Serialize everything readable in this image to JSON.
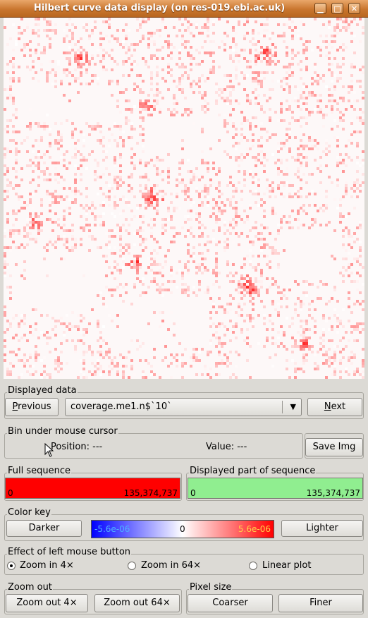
{
  "window": {
    "title": "Hilbert curve data display (on res-019.ebi.ac.uk)"
  },
  "displayed_data": {
    "label": "Displayed data",
    "previous_label": "Previous",
    "previous_mnemonic": "P",
    "previous_rest": "revious",
    "selected": "coverage.me1.n$`10`",
    "next_label": "Next",
    "next_mnemonic": "N",
    "next_rest": "ext"
  },
  "bin_cursor": {
    "label": "Bin under mouse cursor",
    "position": "Position: ---",
    "value": "Value: ---",
    "save_label": "Save Img"
  },
  "full_sequence": {
    "label": "Full sequence",
    "start": "0",
    "end": "135,374,737",
    "color": "#ff0000"
  },
  "displayed_part": {
    "label": "Displayed part of sequence",
    "start": "0",
    "end": "135,374,737",
    "color": "#90ee90"
  },
  "color_key": {
    "label": "Color key",
    "darker_label": "Darker",
    "lighter_label": "Lighter",
    "min": "-5.6e-06",
    "mid": "0",
    "max": "5.6e-06"
  },
  "left_mouse": {
    "label": "Effect of left mouse button",
    "options": [
      {
        "label": "Zoom in 4×",
        "selected": true
      },
      {
        "label": "Zoom in 64×",
        "selected": false
      },
      {
        "label": "Linear plot",
        "selected": false
      }
    ]
  },
  "zoom_out": {
    "label": "Zoom out",
    "btn4": "Zoom out 4×",
    "btn64": "Zoom out 64×"
  },
  "pixel_size": {
    "label": "Pixel size",
    "coarser": "Coarser",
    "finer": "Finer"
  }
}
